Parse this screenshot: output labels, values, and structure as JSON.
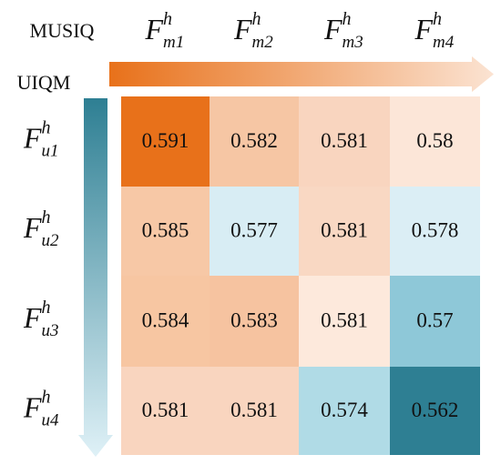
{
  "chart_data": {
    "type": "heatmap",
    "x_axis_label": "MUSIQ",
    "y_axis_label": "UIQM",
    "label_base": "F",
    "label_sup": "h",
    "x_categories": [
      "m1",
      "m2",
      "m3",
      "m4"
    ],
    "y_categories": [
      "u1",
      "u2",
      "u3",
      "u4"
    ],
    "values": [
      [
        0.591,
        0.582,
        0.581,
        0.58
      ],
      [
        0.585,
        0.577,
        0.581,
        0.578
      ],
      [
        0.584,
        0.583,
        0.581,
        0.57
      ],
      [
        0.581,
        0.581,
        0.574,
        0.562
      ]
    ],
    "value_labels": [
      [
        "0.591",
        "0.582",
        "0.581",
        "0.58"
      ],
      [
        "0.585",
        "0.577",
        "0.581",
        "0.578"
      ],
      [
        "0.584",
        "0.583",
        "0.581",
        "0.57"
      ],
      [
        "0.581",
        "0.581",
        "0.574",
        "0.562"
      ]
    ],
    "colors": [
      [
        "#e8711a",
        "#f6c6a4",
        "#f9d5bf",
        "#fce6d8"
      ],
      [
        "#f7c8a6",
        "#d8edf4",
        "#f9d8c3",
        "#dbeef5"
      ],
      [
        "#f7c6a2",
        "#f6c3a0",
        "#fde9dc",
        "#8ec8d8"
      ],
      [
        "#f9d5bf",
        "#f9d5bf",
        "#b0dbe6",
        "#2e7f93"
      ]
    ]
  }
}
